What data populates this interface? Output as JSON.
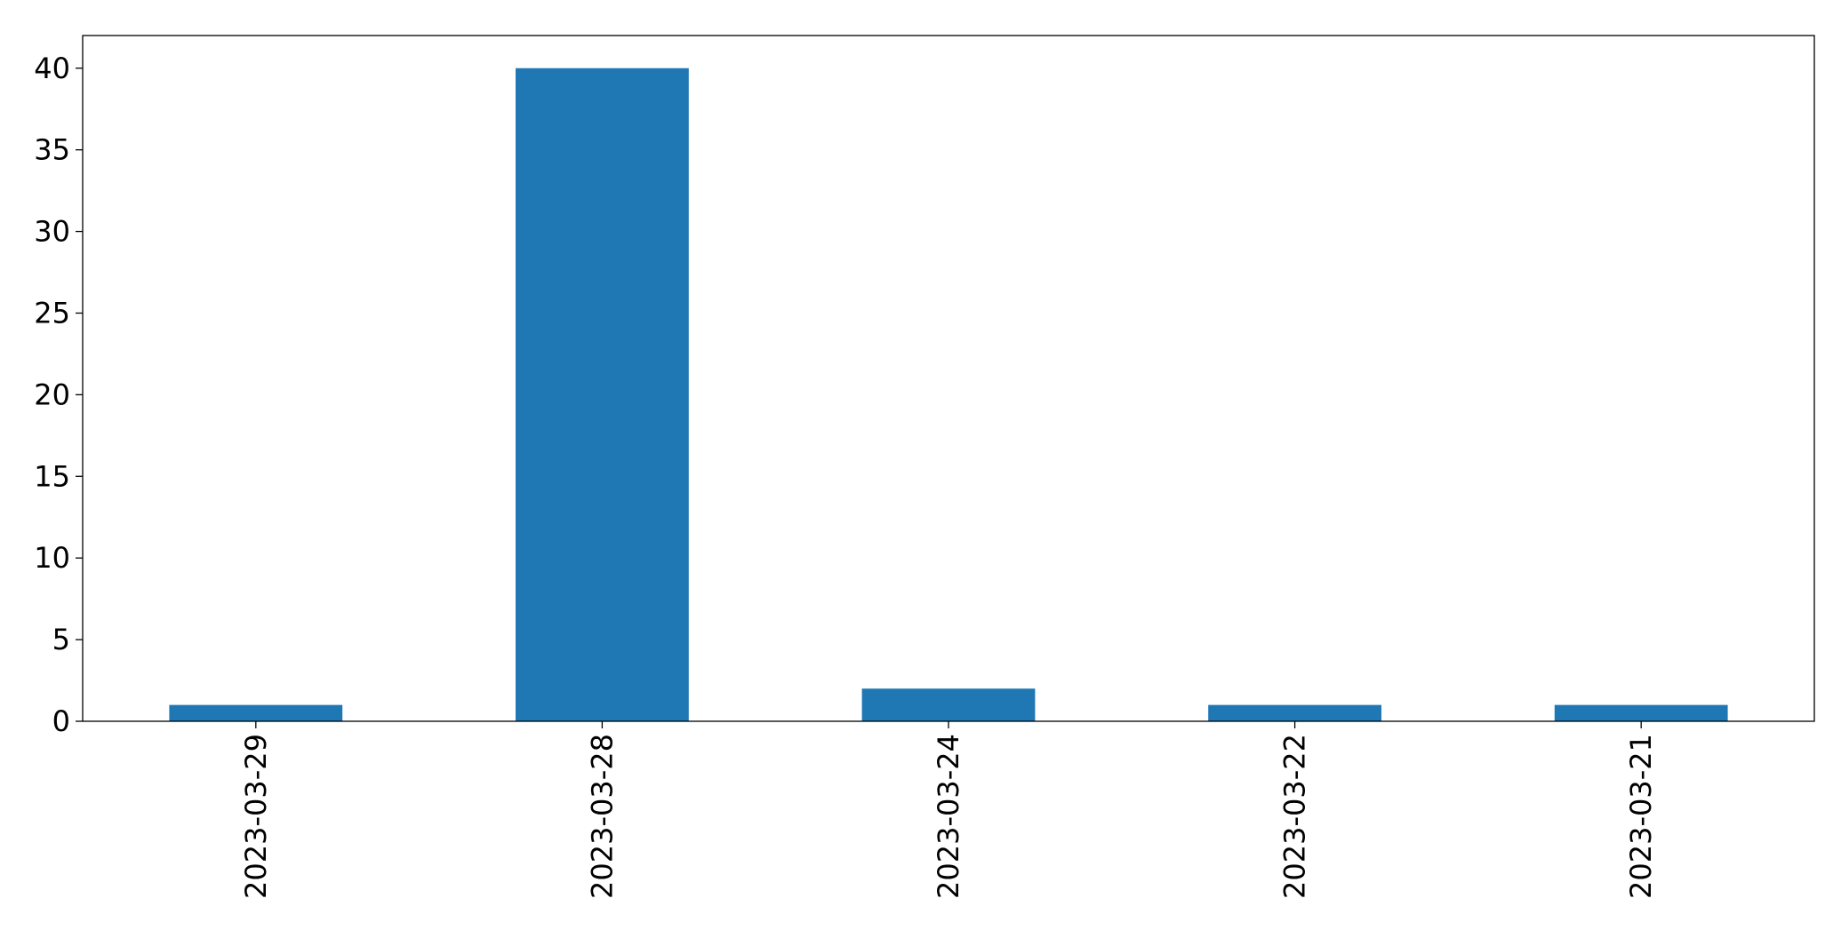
{
  "chart_data": {
    "type": "bar",
    "categories": [
      "2023-03-29",
      "2023-03-28",
      "2023-03-24",
      "2023-03-22",
      "2023-03-21"
    ],
    "values": [
      1,
      40,
      2,
      1,
      1
    ],
    "title": "",
    "xlabel": "",
    "ylabel": "",
    "ylim": [
      0,
      42
    ],
    "yticks": [
      0,
      5,
      10,
      15,
      20,
      25,
      30,
      35,
      40
    ],
    "xtick_rotation": 90,
    "grid": false,
    "legend": "none",
    "bar_color": "#1f77b4"
  }
}
